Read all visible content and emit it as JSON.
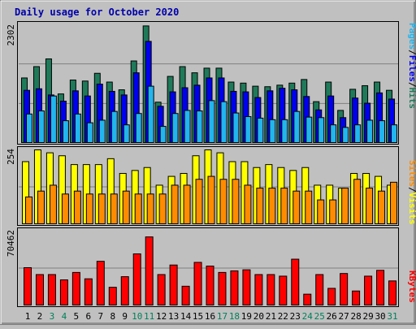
{
  "colors": {
    "background": "#c0c0c0",
    "hits": "#1f7a5a",
    "files": "#0000ee",
    "pages": "#22b5ee",
    "visits": "#ffff00",
    "sites": "#ff8c00",
    "kbytes": "#ff0000",
    "title": "#0000aa",
    "weekend_day": "#00805a",
    "weekday": "#000000"
  },
  "chart_data": [
    {
      "type": "bar",
      "title": "Daily usage for October 2020",
      "categories": [
        "1",
        "2",
        "3",
        "4",
        "5",
        "6",
        "7",
        "8",
        "9",
        "10",
        "11",
        "12",
        "13",
        "14",
        "15",
        "16",
        "17",
        "18",
        "19",
        "20",
        "21",
        "22",
        "23",
        "24",
        "25",
        "26",
        "27",
        "28",
        "29",
        "30",
        "31"
      ],
      "weekend_days": [
        "3",
        "4",
        "10",
        "11",
        "17",
        "18",
        "24",
        "25",
        "31"
      ],
      "ylabel_max": "2302",
      "ylim": [
        0,
        2302
      ],
      "legend": [
        "Pages",
        "Files",
        "Hits"
      ],
      "series": [
        {
          "name": "Hits",
          "values": [
            1270,
            1490,
            1640,
            960,
            1230,
            1210,
            1360,
            1190,
            1040,
            1600,
            2280,
            800,
            1300,
            1490,
            1370,
            1460,
            1460,
            1190,
            1170,
            1110,
            1100,
            1130,
            1170,
            1240,
            810,
            1190,
            640,
            1050,
            1120,
            1190,
            1030
          ]
        },
        {
          "name": "Files",
          "values": [
            1030,
            1060,
            940,
            820,
            1020,
            920,
            1150,
            1010,
            940,
            1370,
            1980,
            720,
            1000,
            1080,
            1130,
            1270,
            1270,
            1010,
            1000,
            890,
            1020,
            1070,
            1040,
            910,
            650,
            920,
            500,
            880,
            780,
            980,
            860
          ]
        },
        {
          "name": "Pages",
          "values": [
            570,
            630,
            920,
            440,
            570,
            400,
            450,
            620,
            360,
            580,
            1110,
            330,
            580,
            640,
            630,
            830,
            810,
            590,
            520,
            490,
            460,
            460,
            620,
            510,
            500,
            360,
            310,
            360,
            450,
            440,
            360
          ]
        }
      ]
    },
    {
      "type": "bar",
      "ylabel_max": "254",
      "ylim": [
        0,
        254
      ],
      "legend": [
        "Sites",
        "Visits"
      ],
      "series": [
        {
          "name": "Visits",
          "values": [
            214,
            254,
            244,
            234,
            204,
            204,
            204,
            224,
            174,
            184,
            194,
            134,
            164,
            174,
            234,
            254,
            244,
            214,
            214,
            194,
            204,
            194,
            184,
            194,
            134,
            134,
            124,
            174,
            174,
            164,
            134
          ]
        },
        {
          "name": "Sites",
          "values": [
            94,
            114,
            134,
            104,
            114,
            104,
            104,
            104,
            114,
            104,
            104,
            104,
            134,
            134,
            154,
            164,
            154,
            154,
            134,
            124,
            124,
            124,
            114,
            114,
            84,
            84,
            124,
            154,
            124,
            114,
            144
          ]
        }
      ]
    },
    {
      "type": "bar",
      "ylabel_max": "70462",
      "ylim": [
        0,
        70462
      ],
      "legend": [
        "KBytes"
      ],
      "series": [
        {
          "name": "KBytes",
          "values": [
            36000,
            29500,
            29500,
            24500,
            31500,
            25500,
            42000,
            17500,
            27500,
            49000,
            65000,
            29500,
            38500,
            18500,
            41000,
            37500,
            31500,
            33000,
            34000,
            29500,
            29500,
            28000,
            44000,
            11000,
            29500,
            16500,
            30500,
            14000,
            28000,
            33500,
            23500
          ]
        }
      ]
    }
  ]
}
